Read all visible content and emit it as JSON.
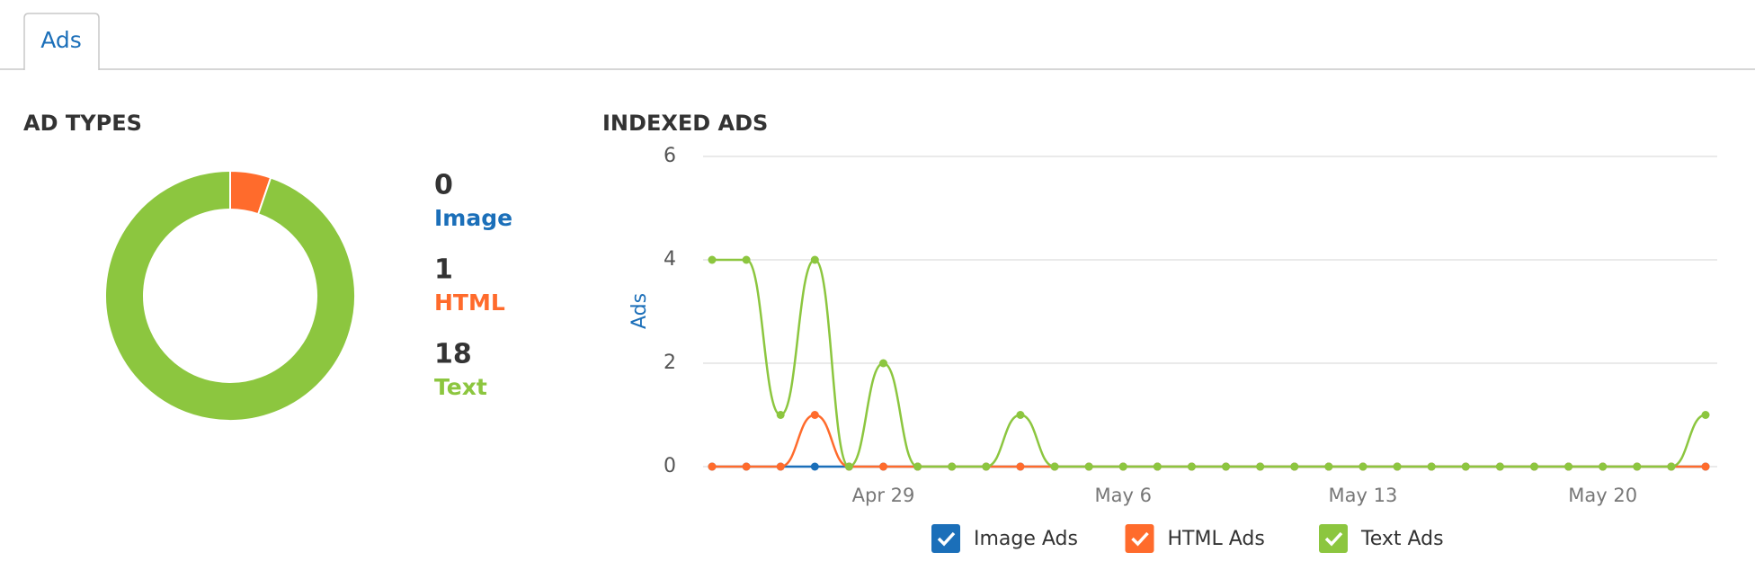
{
  "tab": "Ads",
  "chart_data": [
    {
      "type": "donut",
      "title": "AD TYPES",
      "categories": [
        "Image",
        "HTML",
        "Text"
      ],
      "values": [
        0,
        1,
        18
      ],
      "colors": [
        "#1b6fb9",
        "#ff6b2c",
        "#8cc63f"
      ]
    },
    {
      "type": "line",
      "title": "INDEXED ADS",
      "y_label": "Ads",
      "categories": [
        null,
        null,
        null,
        null,
        null,
        "Apr 29",
        null,
        null,
        null,
        null,
        null,
        null,
        "May 6",
        null,
        null,
        null,
        null,
        null,
        null,
        "May 13",
        null,
        null,
        null,
        null,
        null,
        null,
        "May 20",
        null,
        null,
        null
      ],
      "series": [
        {
          "name": "Image Ads",
          "color": "#1b6fb9",
          "values": [
            0,
            0,
            0,
            0,
            0,
            0,
            0,
            0,
            0,
            0,
            0,
            0,
            0,
            0,
            0,
            0,
            0,
            0,
            0,
            0,
            0,
            0,
            0,
            0,
            0,
            0,
            0,
            0,
            0,
            0
          ]
        },
        {
          "name": "HTML Ads",
          "color": "#ff6b2c",
          "values": [
            0,
            0,
            0,
            1,
            0,
            0,
            0,
            0,
            0,
            0,
            0,
            0,
            0,
            0,
            0,
            0,
            0,
            0,
            0,
            0,
            0,
            0,
            0,
            0,
            0,
            0,
            0,
            0,
            0,
            0
          ]
        },
        {
          "name": "Text Ads",
          "color": "#8cc63f",
          "values": [
            4,
            4,
            1,
            4,
            0,
            2,
            0,
            0,
            0,
            1,
            0,
            0,
            0,
            0,
            0,
            0,
            0,
            0,
            0,
            0,
            0,
            0,
            0,
            0,
            0,
            0,
            0,
            0,
            0,
            1
          ]
        }
      ],
      "ylim": [
        0,
        6
      ],
      "yticks": [
        0,
        2,
        4,
        6
      ],
      "grid": true
    }
  ]
}
